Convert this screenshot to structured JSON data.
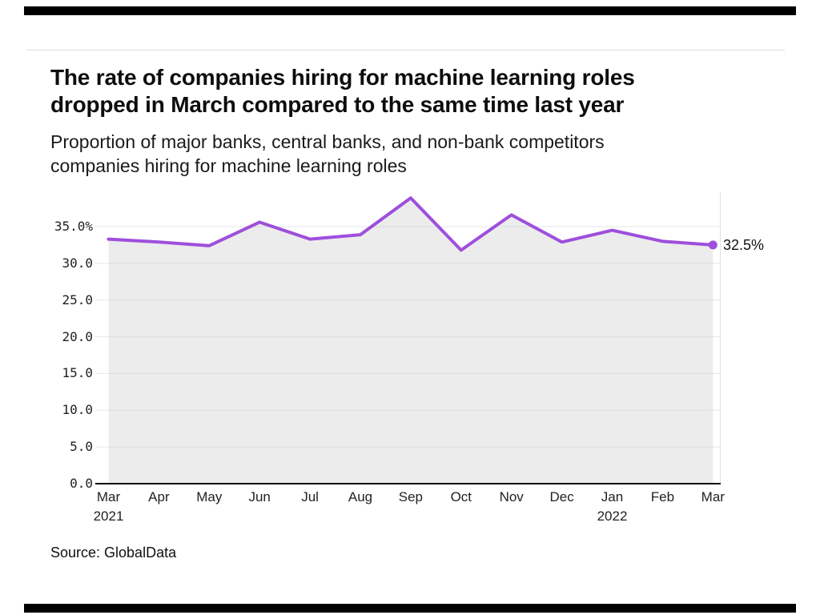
{
  "header": {
    "title_lines": [
      "The rate of companies hiring for machine learning roles",
      "dropped in March compared to the same time last year"
    ],
    "subtitle_lines": [
      "Proportion of major banks, central banks, and non-bank competitors",
      "companies hiring for machine learning roles"
    ]
  },
  "chart_data": {
    "type": "line",
    "title": "The rate of companies hiring for machine learning roles dropped in March compared to the same time last year",
    "subtitle": "Proportion of major banks, central banks, and non-bank competitors companies hiring for machine learning roles",
    "categories": [
      "Mar 2021",
      "Apr",
      "May",
      "Jun",
      "Jul",
      "Aug",
      "Sep",
      "Oct",
      "Nov",
      "Dec",
      "Jan 2022",
      "Feb",
      "Mar"
    ],
    "values": [
      33.3,
      32.9,
      32.4,
      35.6,
      33.3,
      33.9,
      38.9,
      31.8,
      36.6,
      32.9,
      34.5,
      33.0,
      32.5
    ],
    "end_label": "32.5%",
    "xlabel": "",
    "ylabel": "",
    "ylim": [
      0,
      40
    ],
    "grid": true,
    "legend": false,
    "y_axis": {
      "ticks": [
        {
          "value": 35,
          "label": "35.0%"
        },
        {
          "value": 30,
          "label": "30.0"
        },
        {
          "value": 25,
          "label": "25.0"
        },
        {
          "value": 20,
          "label": "20.0"
        },
        {
          "value": 15,
          "label": "15.0"
        },
        {
          "value": 10,
          "label": "10.0"
        },
        {
          "value": 5,
          "label": "5.0"
        },
        {
          "value": 0,
          "label": "0.0"
        }
      ]
    },
    "colors": {
      "line": "#9e4fdc",
      "area": "#ececec",
      "grid": "#cdcdcd",
      "axis": "#111111",
      "spine": "#e0e0e0"
    }
  },
  "footer": {
    "source": "Source: GlobalData"
  }
}
